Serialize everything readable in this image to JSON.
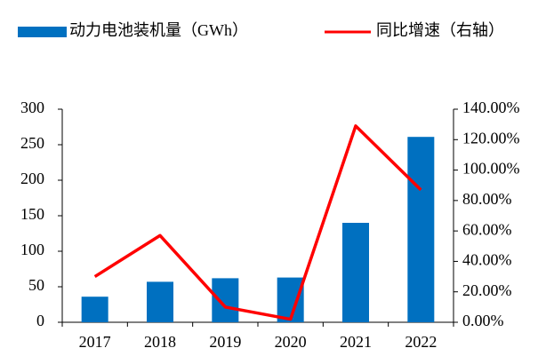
{
  "chart_data": {
    "type": "bar_line",
    "categories": [
      "2017",
      "2018",
      "2019",
      "2020",
      "2021",
      "2022"
    ],
    "series": [
      {
        "name": "动力电池装机量（GWh）",
        "type": "bar",
        "color": "#0070c0",
        "values": [
          36,
          57,
          62,
          63,
          140,
          261
        ]
      },
      {
        "name": "同比增速（右轴）",
        "type": "line",
        "axis": "y2",
        "color": "#ff0000",
        "values": [
          30,
          57,
          10,
          2,
          129,
          87
        ]
      }
    ],
    "ylim": [
      0,
      300
    ],
    "yticks": [
      0,
      50,
      100,
      150,
      200,
      250,
      300
    ],
    "y2lim": [
      0,
      140
    ],
    "y2ticks": [
      {
        "value": 0,
        "label": "0.00%"
      },
      {
        "value": 20,
        "label": "20.00%"
      },
      {
        "value": 40,
        "label": "40.00%"
      },
      {
        "value": 60,
        "label": "60.00%"
      },
      {
        "value": 80,
        "label": "80.00%"
      },
      {
        "value": 100,
        "label": "100.00%"
      },
      {
        "value": 120,
        "label": "120.00%"
      },
      {
        "value": 140,
        "label": "140.00%"
      }
    ],
    "legend": "top"
  }
}
